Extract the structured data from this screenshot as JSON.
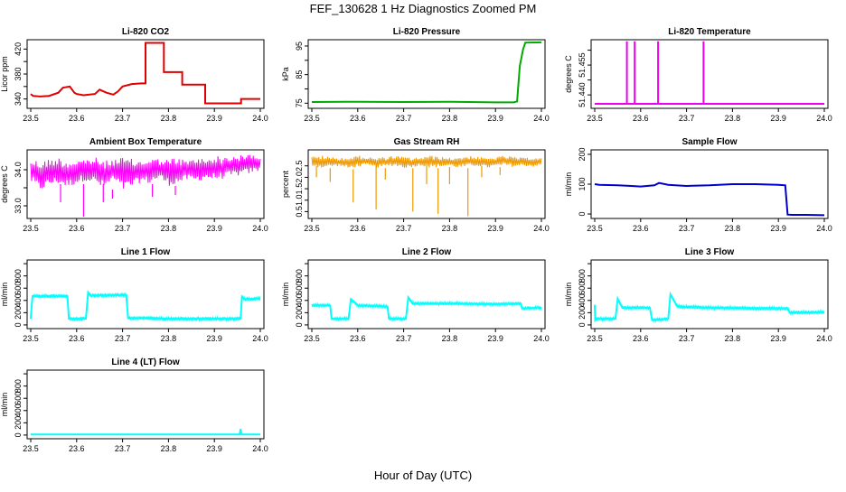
{
  "figure": {
    "title": "FEF_130628  1 Hz Diagnostics Zoomed PM",
    "xlabel": "Hour of Day (UTC)"
  },
  "chart_data": [
    {
      "type": "line",
      "title": "Li-820 CO2",
      "xlabel": "",
      "ylabel": "Licor ppm",
      "color": "#e00000",
      "xlim": [
        23.5,
        24.0
      ],
      "x_ticks": [
        "23.5",
        "23.6",
        "23.7",
        "23.8",
        "23.9",
        "24.0"
      ],
      "ylim": [
        325,
        435
      ],
      "y_ticks": [
        340,
        360,
        380,
        400,
        420
      ],
      "y_tick_labels": [
        "340",
        "",
        "380",
        "",
        "420"
      ],
      "x": [
        23.5,
        23.505,
        23.52,
        23.54,
        23.56,
        23.57,
        23.585,
        23.595,
        23.6,
        23.615,
        23.64,
        23.65,
        23.665,
        23.68,
        23.69,
        23.7,
        23.72,
        23.74,
        23.75,
        23.75,
        23.79,
        23.79,
        23.83,
        23.83,
        23.88,
        23.88,
        23.958,
        23.958,
        24.0
      ],
      "y": [
        348,
        345,
        344,
        345,
        350,
        358,
        360,
        350,
        348,
        346,
        348,
        355,
        350,
        347,
        352,
        360,
        364,
        365,
        365,
        430,
        430,
        383,
        383,
        363,
        363,
        333,
        333,
        340,
        340
      ]
    },
    {
      "type": "line",
      "title": "Li-820 Pressure",
      "xlabel": "",
      "ylabel": "kPa",
      "color": "#00aa00",
      "xlim": [
        23.5,
        24.0
      ],
      "x_ticks": [
        "23.5",
        "23.6",
        "23.7",
        "23.8",
        "23.9",
        "24.0"
      ],
      "ylim": [
        73.2,
        97.2
      ],
      "y_ticks": [
        75,
        80,
        85,
        90,
        95
      ],
      "y_tick_labels": [
        "75",
        "",
        "85",
        "",
        "95"
      ],
      "x": [
        23.5,
        23.6,
        23.7,
        23.8,
        23.9,
        23.94,
        23.947,
        23.953,
        23.96,
        23.965,
        24.0
      ],
      "y": [
        75.4,
        75.5,
        75.4,
        75.5,
        75.3,
        75.3,
        75.6,
        88.0,
        93.8,
        96.2,
        96.3
      ]
    },
    {
      "type": "line",
      "title": "Li-820 Temperature",
      "xlabel": "",
      "ylabel": "degrees C",
      "color": "#ee00ee",
      "xlim": [
        23.5,
        24.0
      ],
      "x_ticks": [
        "23.5",
        "23.6",
        "23.7",
        "23.8",
        "23.9",
        "24.0"
      ],
      "ylim": [
        51.4355,
        51.4585
      ],
      "y_ticks": [
        51.44,
        51.445,
        51.45,
        51.455
      ],
      "y_tick_labels": [
        "51.440",
        "",
        "51.455",
        ""
      ],
      "x": [
        23.5,
        23.57,
        23.57,
        23.57,
        23.587,
        23.587,
        23.587,
        23.638,
        23.638,
        23.638,
        23.737,
        23.737,
        23.737,
        24.0
      ],
      "y": [
        51.437,
        51.437,
        51.458,
        51.437,
        51.437,
        51.458,
        51.437,
        51.437,
        51.458,
        51.437,
        51.437,
        51.458,
        51.437,
        51.437
      ]
    },
    {
      "type": "line",
      "title": "Ambient Box Temperature",
      "xlabel": "",
      "ylabel": "degrees C",
      "color": "#ff00ff",
      "xlim": [
        23.5,
        24.0
      ],
      "x_ticks": [
        "23.5",
        "23.6",
        "23.7",
        "23.8",
        "23.9",
        "24.0"
      ],
      "ylim": [
        32.65,
        34.55
      ],
      "y_ticks": [
        33.0,
        33.5,
        34.0
      ],
      "y_tick_labels": [
        "33.0",
        "",
        "34.0"
      ],
      "x": [
        23.5,
        23.52,
        23.54,
        23.56,
        23.58,
        23.6,
        23.62,
        23.64,
        23.66,
        23.68,
        23.7,
        23.72,
        23.74,
        23.76,
        23.78,
        23.8,
        23.82,
        23.84,
        23.86,
        23.88,
        23.9,
        23.92,
        23.94,
        23.96,
        23.98,
        24.0
      ],
      "y_upper": [
        34.3,
        34.25,
        34.3,
        34.35,
        34.25,
        34.3,
        34.3,
        34.35,
        34.25,
        34.3,
        34.35,
        34.3,
        34.25,
        34.35,
        34.3,
        34.3,
        34.35,
        34.25,
        34.35,
        34.3,
        34.4,
        34.35,
        34.4,
        34.4,
        34.45,
        34.4
      ],
      "y_lower": [
        33.65,
        33.4,
        33.55,
        33.6,
        33.5,
        33.6,
        33.7,
        33.6,
        33.45,
        33.7,
        33.4,
        33.5,
        33.65,
        33.6,
        33.75,
        33.55,
        33.6,
        33.7,
        33.65,
        33.75,
        33.7,
        33.75,
        33.8,
        33.85,
        33.9,
        33.95
      ],
      "spikes": [
        {
          "x": 23.615,
          "y": 32.7
        },
        {
          "x": 23.565,
          "y": 33.1
        },
        {
          "x": 23.658,
          "y": 33.1
        },
        {
          "x": 23.678,
          "y": 33.2
        },
        {
          "x": 23.765,
          "y": 33.25
        },
        {
          "x": 23.815,
          "y": 33.3
        }
      ]
    },
    {
      "type": "line",
      "title": "Gas Stream RH",
      "xlabel": "",
      "ylabel": "percent",
      "color": "#ee9900",
      "xlim": [
        23.5,
        24.0
      ],
      "x_ticks": [
        "23.5",
        "23.6",
        "23.7",
        "23.8",
        "23.9",
        "24.0"
      ],
      "ylim": [
        0.2,
        3.2
      ],
      "y_ticks": [
        0.5,
        1.0,
        1.5,
        2.0,
        2.5
      ],
      "y_tick_labels": [
        "0.5",
        "1.0",
        "1.5",
        "2.0",
        "2.5"
      ],
      "x": [
        23.5,
        23.52,
        23.54,
        23.56,
        23.58,
        23.6,
        23.62,
        23.64,
        23.66,
        23.68,
        23.7,
        23.72,
        23.74,
        23.76,
        23.78,
        23.8,
        23.82,
        23.84,
        23.86,
        23.88,
        23.9,
        23.92,
        23.94,
        23.96,
        23.98,
        24.0
      ],
      "y_upper": [
        2.9,
        2.95,
        2.9,
        2.85,
        2.9,
        2.95,
        2.9,
        2.85,
        2.9,
        2.95,
        2.9,
        2.85,
        2.9,
        2.95,
        2.9,
        2.85,
        2.9,
        2.95,
        2.9,
        2.85,
        2.9,
        2.95,
        2.9,
        2.85,
        2.9,
        2.85
      ],
      "y_lower": [
        2.5,
        2.4,
        2.45,
        2.5,
        2.35,
        2.45,
        2.5,
        2.4,
        2.45,
        2.5,
        2.4,
        2.45,
        2.5,
        2.4,
        2.45,
        2.5,
        2.4,
        2.45,
        2.5,
        2.4,
        2.45,
        2.5,
        2.45,
        2.5,
        2.45,
        2.5
      ],
      "spikes": [
        {
          "x": 23.51,
          "y": 2.0
        },
        {
          "x": 23.54,
          "y": 1.8
        },
        {
          "x": 23.59,
          "y": 0.9
        },
        {
          "x": 23.64,
          "y": 0.6
        },
        {
          "x": 23.66,
          "y": 1.9
        },
        {
          "x": 23.72,
          "y": 0.5
        },
        {
          "x": 23.75,
          "y": 1.7
        },
        {
          "x": 23.775,
          "y": 0.4
        },
        {
          "x": 23.8,
          "y": 1.7
        },
        {
          "x": 23.84,
          "y": 0.3
        },
        {
          "x": 23.87,
          "y": 2.0
        },
        {
          "x": 23.91,
          "y": 2.1
        }
      ]
    },
    {
      "type": "line",
      "title": "Sample Flow",
      "xlabel": "",
      "ylabel": "ml/min",
      "color": "#0000cc",
      "xlim": [
        23.5,
        24.0
      ],
      "x_ticks": [
        "23.5",
        "23.6",
        "23.7",
        "23.8",
        "23.9",
        "24.0"
      ],
      "ylim": [
        -15,
        215
      ],
      "y_ticks": [
        0,
        100,
        200
      ],
      "y_tick_labels": [
        "0",
        "100",
        "200"
      ],
      "x": [
        23.5,
        23.51,
        23.55,
        23.58,
        23.6,
        23.63,
        23.64,
        23.66,
        23.7,
        23.75,
        23.8,
        23.85,
        23.9,
        23.915,
        23.92,
        23.93,
        23.96,
        24.0
      ],
      "y": [
        100,
        98,
        96,
        94,
        92,
        96,
        104,
        98,
        94,
        96,
        100,
        100,
        98,
        96,
        -2,
        -3,
        -3,
        -4
      ]
    },
    {
      "type": "line",
      "title": "Line 1 Flow",
      "xlabel": "",
      "ylabel": "ml/min",
      "color": "#00ffff",
      "xlim": [
        23.5,
        24.0
      ],
      "x_ticks": [
        "23.5",
        "23.6",
        "23.7",
        "23.8",
        "23.9",
        "24.0"
      ],
      "ylim": [
        -60,
        1060
      ],
      "y_ticks": [
        0,
        200,
        400,
        600,
        800,
        1000
      ],
      "y_tick_labels": [
        "0",
        "200",
        "400",
        "600",
        "800",
        ""
      ],
      "noise": 35,
      "x": [
        23.5,
        23.502,
        23.504,
        23.58,
        23.583,
        23.62,
        23.625,
        23.63,
        23.708,
        23.712,
        23.75,
        23.8,
        23.957,
        23.96,
        23.965,
        24.0
      ],
      "y": [
        100,
        300,
        470,
        470,
        100,
        100,
        530,
        480,
        490,
        110,
        110,
        100,
        100,
        460,
        420,
        430
      ]
    },
    {
      "type": "line",
      "title": "Line 2 Flow",
      "xlabel": "",
      "ylabel": "ml/min",
      "color": "#00ffff",
      "xlim": [
        23.5,
        24.0
      ],
      "x_ticks": [
        "23.5",
        "23.6",
        "23.7",
        "23.8",
        "23.9",
        "24.0"
      ],
      "ylim": [
        -60,
        1060
      ],
      "y_ticks": [
        0,
        200,
        400,
        600,
        800,
        1000
      ],
      "y_tick_labels": [
        "0",
        "200",
        "400",
        "600",
        "800",
        ""
      ],
      "noise": 30,
      "x": [
        23.5,
        23.54,
        23.543,
        23.58,
        23.585,
        23.6,
        23.665,
        23.668,
        23.705,
        23.71,
        23.72,
        23.8,
        23.9,
        23.955,
        23.958,
        24.0
      ],
      "y": [
        320,
        320,
        100,
        100,
        420,
        320,
        300,
        100,
        100,
        450,
        350,
        350,
        340,
        350,
        270,
        280
      ]
    },
    {
      "type": "line",
      "title": "Line 3 Flow",
      "xlabel": "",
      "ylabel": "ml/min",
      "color": "#00ffff",
      "xlim": [
        23.5,
        24.0
      ],
      "x_ticks": [
        "23.5",
        "23.6",
        "23.7",
        "23.8",
        "23.9",
        "24.0"
      ],
      "ylim": [
        -60,
        1060
      ],
      "y_ticks": [
        0,
        200,
        400,
        600,
        800,
        1000
      ],
      "y_tick_labels": [
        "0",
        "200",
        "400",
        "600",
        "800",
        ""
      ],
      "noise": 30,
      "x": [
        23.5,
        23.501,
        23.503,
        23.545,
        23.55,
        23.56,
        23.62,
        23.625,
        23.66,
        23.665,
        23.68,
        23.75,
        23.85,
        23.92,
        23.925,
        24.0
      ],
      "y": [
        320,
        80,
        100,
        100,
        430,
        280,
        280,
        80,
        100,
        500,
        300,
        280,
        270,
        270,
        200,
        210
      ]
    },
    {
      "type": "line",
      "title": "Line 4 (LT) Flow",
      "xlabel": "",
      "ylabel": "ml/min",
      "color": "#00ffff",
      "xlim": [
        23.5,
        24.0
      ],
      "x_ticks": [
        "23.5",
        "23.6",
        "23.7",
        "23.8",
        "23.9",
        "24.0"
      ],
      "ylim": [
        -60,
        1060
      ],
      "y_ticks": [
        0,
        200,
        400,
        600,
        800,
        1000
      ],
      "y_tick_labels": [
        "0",
        "200",
        "400",
        "600",
        "800",
        ""
      ],
      "noise": 4,
      "x": [
        23.5,
        23.6,
        23.7,
        23.8,
        23.9,
        23.955,
        23.957,
        23.959,
        23.961,
        24.0
      ],
      "y": [
        10,
        10,
        10,
        10,
        10,
        10,
        100,
        10,
        10,
        10
      ]
    }
  ]
}
